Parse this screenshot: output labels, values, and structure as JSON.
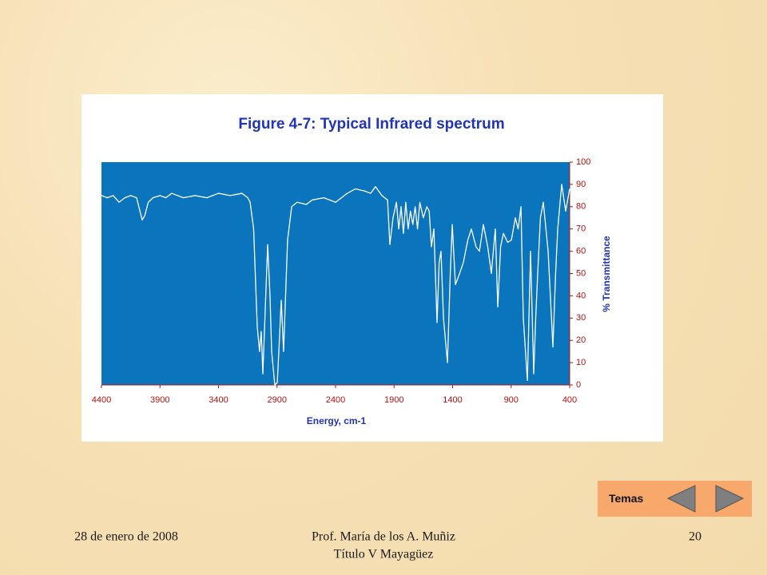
{
  "chart_data": {
    "type": "line",
    "title": "Figure 4-7: Typical Infrared spectrum",
    "x_label": "Energy, cm-1",
    "y_label": "% Transmittance",
    "x": [
      4400,
      4350,
      4300,
      4250,
      4200,
      4150,
      4100,
      4052,
      4030,
      4000,
      3960,
      3900,
      3850,
      3800,
      3700,
      3600,
      3500,
      3400,
      3300,
      3200,
      3150,
      3130,
      3100,
      3069,
      3049,
      3035,
      3021,
      3000,
      2980,
      2960,
      2946,
      2919,
      2898,
      2880,
      2864,
      2844,
      2810,
      2775,
      2728,
      2650,
      2600,
      2500,
      2400,
      2300,
      2230,
      2150,
      2100,
      2059,
      2004,
      1956,
      1936,
      1909,
      1880,
      1860,
      1840,
      1820,
      1800,
      1780,
      1760,
      1740,
      1720,
      1700,
      1680,
      1650,
      1620,
      1600,
      1581,
      1560,
      1533,
      1515,
      1499,
      1478,
      1444,
      1420,
      1403,
      1376,
      1340,
      1308,
      1270,
      1240,
      1200,
      1171,
      1137,
      1100,
      1069,
      1035,
      1014,
      990,
      966,
      930,
      898,
      864,
      840,
      816,
      796,
      761,
      734,
      707,
      690,
      673,
      650,
      625,
      584,
      543,
      520,
      502,
      468,
      434,
      400
    ],
    "values": [
      85,
      84,
      85,
      82,
      84,
      85,
      84,
      74,
      76,
      82,
      84,
      85,
      84,
      86,
      84,
      85,
      84,
      86,
      85,
      86,
      84,
      82,
      70,
      26,
      15,
      24,
      5,
      35,
      63,
      40,
      15,
      0,
      1,
      20,
      38,
      15,
      65,
      80,
      82,
      81,
      83,
      84,
      82,
      86,
      88,
      87,
      86,
      89,
      85,
      83,
      63,
      75,
      82,
      70,
      80,
      68,
      82,
      70,
      78,
      72,
      80,
      70,
      82,
      75,
      80,
      78,
      62,
      70,
      28,
      55,
      60,
      30,
      10,
      50,
      72,
      45,
      50,
      55,
      65,
      70,
      62,
      60,
      72,
      62,
      50,
      70,
      35,
      62,
      68,
      64,
      65,
      75,
      70,
      80,
      30,
      2,
      60,
      5,
      30,
      50,
      75,
      82,
      60,
      17,
      50,
      70,
      90,
      78,
      88
    ],
    "color": "#ffffff",
    "plot_background": "#0a74bd",
    "xlim": [
      4400,
      400
    ],
    "xticks": [
      4400,
      3900,
      3400,
      2900,
      2400,
      1900,
      1400,
      900,
      400
    ],
    "ylim": [
      0,
      100
    ],
    "yticks": [
      0,
      10,
      20,
      30,
      40,
      50,
      60,
      70,
      80,
      90,
      100
    ],
    "y_axis_side": "right",
    "grid": false
  },
  "nav": {
    "label": "Temas"
  },
  "footer": {
    "date": "28 de enero de 2008",
    "author": [
      "Prof. María de los A. Muñiz",
      "Título V Mayagüez"
    ],
    "page": "20"
  }
}
